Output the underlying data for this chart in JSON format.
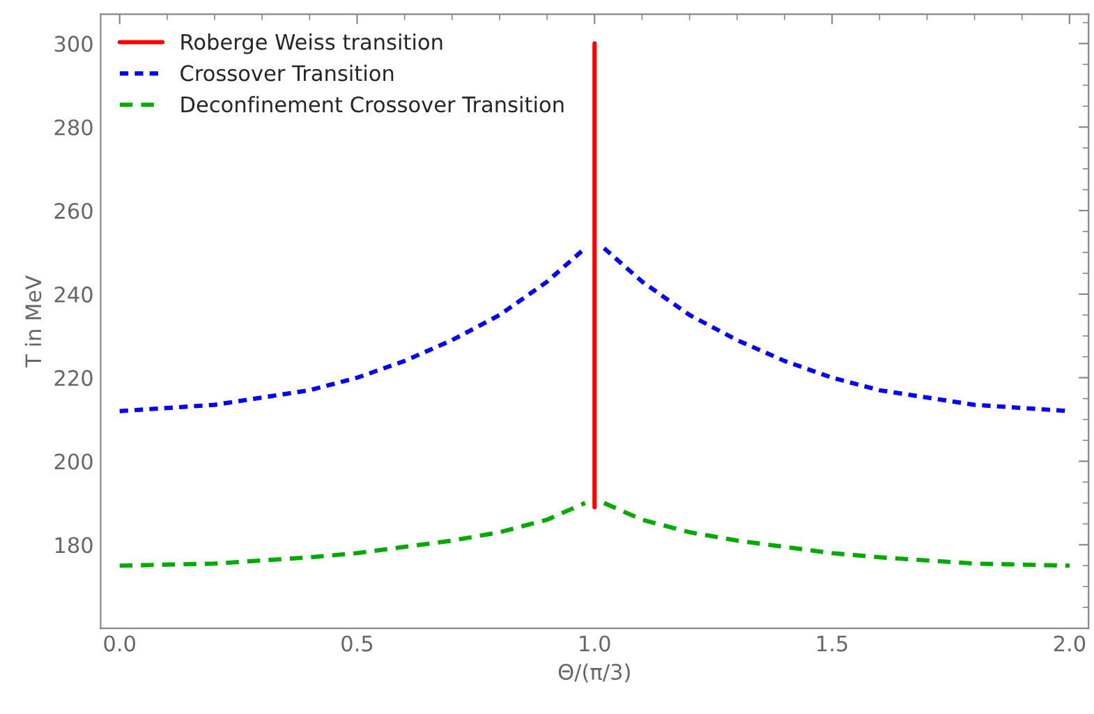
{
  "chart_data": {
    "type": "line",
    "xlabel": "Θ/(π/3)",
    "ylabel": "T in MeV",
    "xlim": [
      -0.04,
      2.04
    ],
    "ylim": [
      160,
      307
    ],
    "xticks": [
      {
        "value": 0,
        "label": "0.0"
      },
      0.5,
      {
        "value": 1,
        "label": "1.0"
      },
      1.5,
      {
        "value": 2,
        "label": "2.0"
      }
    ],
    "yticks": [
      180,
      200,
      220,
      240,
      260,
      280,
      300
    ],
    "grid": false,
    "legend": "top left",
    "series": [
      {
        "name": "Roberge Weiss transition",
        "color": "#ff0000",
        "line_style": "solid",
        "x": [
          1,
          1
        ],
        "values": [
          189,
          300
        ]
      },
      {
        "name": "Crossover Transition",
        "color": "#0000ff",
        "line_style": "dotted",
        "x": [
          0,
          0.2,
          0.4,
          0.5,
          0.6,
          0.7,
          0.8,
          0.9,
          0.98,
          null,
          1.02,
          1.1,
          1.2,
          1.3,
          1.4,
          1.5,
          1.6,
          1.8,
          2.0
        ],
        "values": [
          212,
          213.5,
          217,
          220,
          224,
          229,
          235,
          243,
          251,
          null,
          251,
          243,
          235,
          229,
          224,
          220,
          217,
          213.5,
          212
        ]
      },
      {
        "name": "Deconfinement Crossover Transition",
        "color": "#00aa00",
        "line_style": "dashed",
        "x": [
          0,
          0.2,
          0.4,
          0.5,
          0.6,
          0.7,
          0.8,
          0.9,
          0.98,
          null,
          1.02,
          1.1,
          1.2,
          1.3,
          1.4,
          1.5,
          1.6,
          1.8,
          2.0
        ],
        "values": [
          175,
          175.5,
          177,
          178,
          179.5,
          181,
          183,
          186,
          190,
          null,
          190,
          186,
          183,
          181,
          179.5,
          178,
          177,
          175.5,
          175
        ]
      }
    ]
  }
}
